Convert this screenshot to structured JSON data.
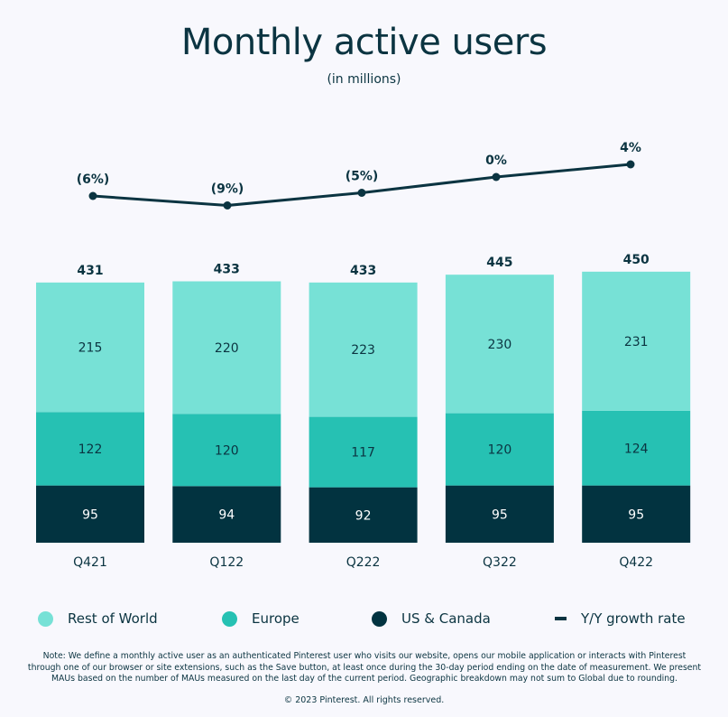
{
  "chart_data": {
    "type": "bar",
    "stacked": true,
    "title": "Monthly active users",
    "subtitle": "(in millions)",
    "categories": [
      "Q421",
      "Q122",
      "Q222",
      "Q322",
      "Q422"
    ],
    "totals": [
      431,
      433,
      433,
      445,
      450
    ],
    "series": [
      {
        "name": "US & Canada",
        "color": "#023340",
        "values": [
          95,
          94,
          92,
          95,
          95
        ]
      },
      {
        "name": "Europe",
        "color": "#26c1b3",
        "values": [
          122,
          120,
          117,
          120,
          124
        ]
      },
      {
        "name": "Rest of World",
        "color": "#77e1d6",
        "values": [
          215,
          220,
          223,
          230,
          231
        ]
      }
    ],
    "line_series": {
      "name": "Y/Y growth rate",
      "color": "#0b3441",
      "values": [
        -6,
        -9,
        -5,
        0,
        4
      ],
      "labels": [
        "(6%)",
        "(9%)",
        "(5%)",
        "0%",
        "4%"
      ]
    },
    "legend": [
      "Rest of World",
      "Europe",
      "US & Canada",
      "Y/Y growth rate"
    ],
    "legend_placement": "bottom",
    "grid": false
  },
  "note": "Note: We define a monthly active user as an authenticated Pinterest user who visits our website, opens our mobile application or interacts with Pinterest through one of our browser or site extensions, such as the Save button, at least once during the 30-day period ending on the date of measurement. We present MAUs based on the number of MAUs measured on the last day of the current period. Geographic breakdown may not sum to Global due to rounding.",
  "copyright": "© 2023 Pinterest. All rights reserved."
}
